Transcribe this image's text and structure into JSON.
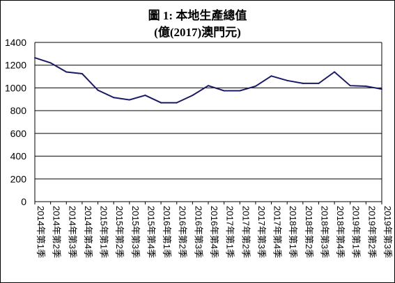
{
  "chart_data": {
    "type": "line",
    "title": "圖 1: 本地生產總值",
    "subtitle": "(億(2017)澳門元)",
    "categories": [
      "2014年第1季",
      "2014年第2季",
      "2014年第3季",
      "2014年第4季",
      "2015年第1季",
      "2015年第2季",
      "2015年第3季",
      "2015年第4季",
      "2016年第1季",
      "2016年第2季",
      "2016年第3季",
      "2016年第4季",
      "2017年第1季",
      "2017年第2季",
      "2017年第3季",
      "2017年第4季",
      "2018年第1季",
      "2018年第2季",
      "2018年第3季",
      "2018年第4季",
      "2019年第1季",
      "2019年第2季",
      "2019年第3季"
    ],
    "values": [
      1265,
      1220,
      1140,
      1125,
      980,
      915,
      895,
      935,
      870,
      870,
      935,
      1020,
      975,
      975,
      1015,
      1105,
      1065,
      1040,
      1040,
      1140,
      1020,
      1015,
      990
    ],
    "ylim": [
      0,
      1400
    ],
    "yticks": [
      0,
      200,
      400,
      600,
      800,
      1000,
      1200,
      1400
    ],
    "grid": true,
    "legend": "none",
    "line_color": "#1a1a66"
  }
}
